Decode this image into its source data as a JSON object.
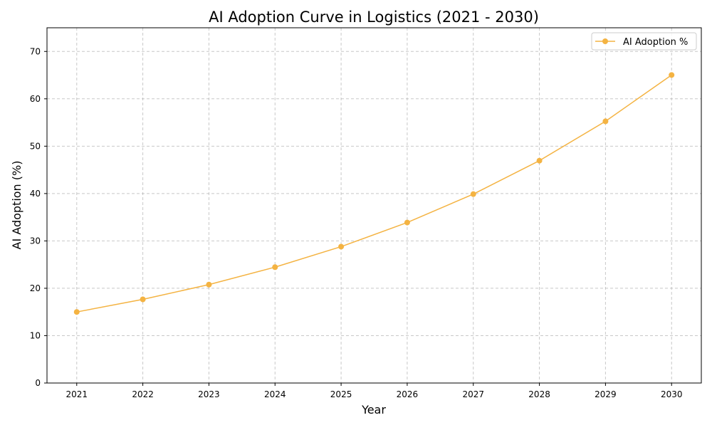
{
  "chart_data": {
    "type": "line",
    "title": "AI Adoption Curve in Logistics (2021 - 2030)",
    "xlabel": "Year",
    "ylabel": "AI Adoption (%)",
    "x": [
      2021,
      2022,
      2023,
      2024,
      2025,
      2026,
      2027,
      2028,
      2029,
      2030
    ],
    "series": [
      {
        "name": "AI Adoption %",
        "color": "#f4b342",
        "values": [
          15.0,
          17.66,
          20.78,
          24.46,
          28.79,
          33.88,
          39.88,
          46.94,
          55.25,
          65.03
        ]
      }
    ],
    "xlim": [
      2020.55,
      2030.45
    ],
    "ylim": [
      0,
      75
    ],
    "xticks": [
      "2021",
      "2022",
      "2023",
      "2024",
      "2025",
      "2026",
      "2027",
      "2028",
      "2029",
      "2030"
    ],
    "yticks": [
      "0",
      "10",
      "20",
      "30",
      "40",
      "50",
      "60",
      "70"
    ],
    "grid": true,
    "legend": "top-right"
  }
}
